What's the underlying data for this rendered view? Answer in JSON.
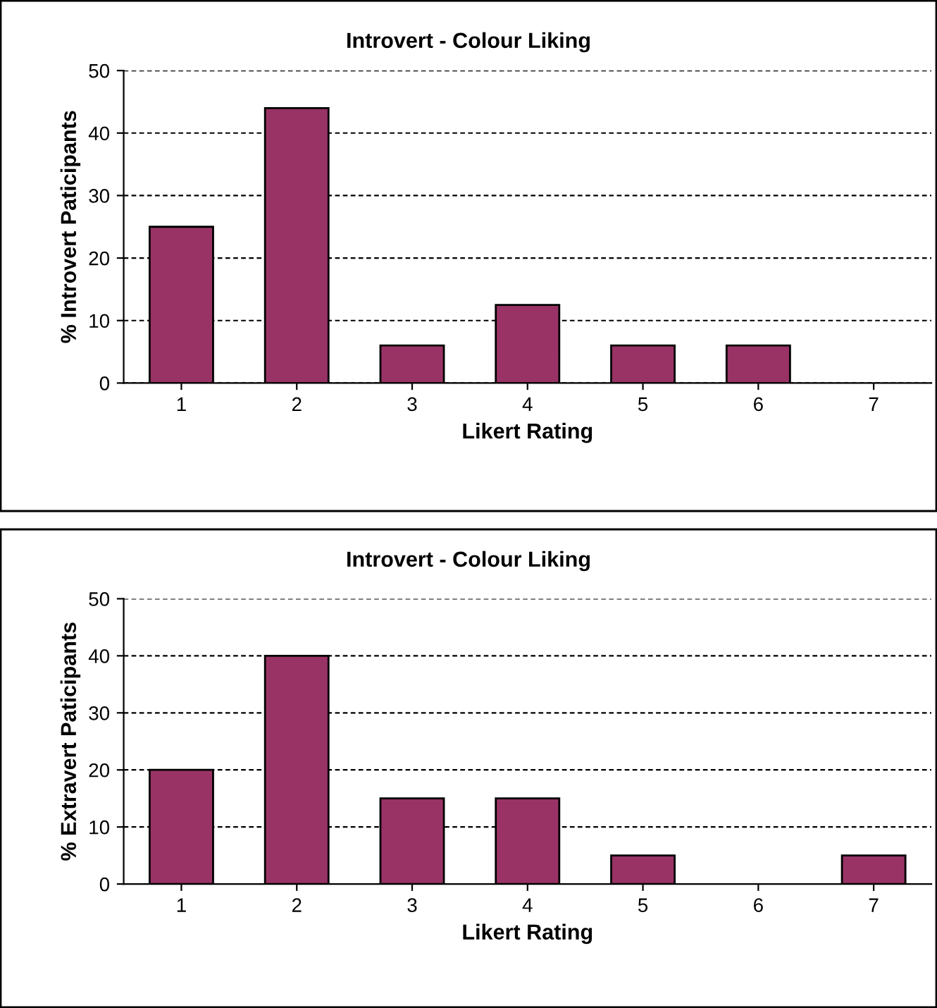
{
  "chart_data": [
    {
      "type": "bar",
      "title": "Introvert - Colour Liking",
      "xlabel": "Likert Rating",
      "ylabel": "% Introvert Paticipants",
      "categories": [
        "1",
        "2",
        "3",
        "4",
        "5",
        "6",
        "7"
      ],
      "values": [
        25,
        44,
        6,
        12.5,
        6,
        6,
        0
      ],
      "color": "#993366",
      "ylim": [
        0,
        50
      ],
      "yticks": [
        0,
        10,
        20,
        30,
        40,
        50
      ],
      "grid": "y",
      "legend": false
    },
    {
      "type": "bar",
      "title": "Introvert - Colour Liking",
      "xlabel": "Likert Rating",
      "ylabel": "% Extravert Paticipants",
      "categories": [
        "1",
        "2",
        "3",
        "4",
        "5",
        "6",
        "7"
      ],
      "values": [
        20,
        40,
        15,
        15,
        5,
        0,
        5
      ],
      "color": "#993366",
      "ylim": [
        0,
        50
      ],
      "yticks": [
        0,
        10,
        20,
        30,
        40,
        50
      ],
      "grid": "y",
      "legend": false
    }
  ]
}
